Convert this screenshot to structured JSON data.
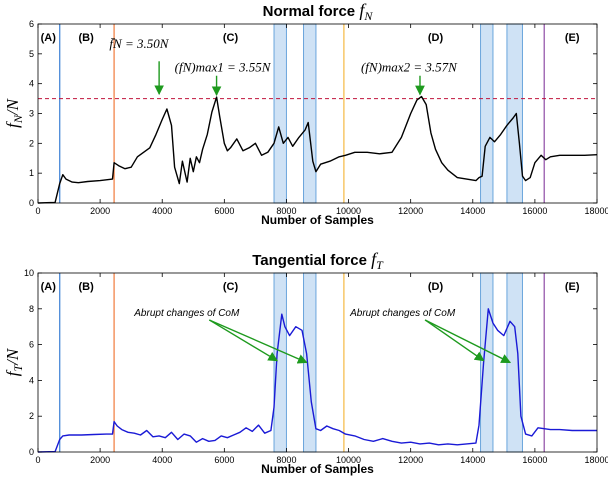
{
  "chart_data": [
    {
      "type": "line",
      "title_text": "Normal force",
      "title_symbol": "f",
      "title_symbol_sub": "N",
      "xlabel": "Number of Samples",
      "ylabel": "f",
      "ylabel_sub": "N",
      "ylabel_suffix": "/N",
      "xlim": [
        0,
        18000
      ],
      "ylim": [
        0,
        6
      ],
      "xticks": [
        0,
        2000,
        4000,
        6000,
        8000,
        10000,
        12000,
        14000,
        16000,
        18000
      ],
      "yticks": [
        0,
        1,
        2,
        3,
        4,
        5,
        6
      ],
      "grid": false,
      "line_color": "#000000",
      "reference_line": {
        "y": 3.5,
        "style": "dashed",
        "color": "#c0143c"
      },
      "phase_lines": [
        {
          "x": 700,
          "color": "#3a7fd5"
        },
        {
          "x": 2450,
          "color": "#f07a3a"
        },
        {
          "x": 9850,
          "color": "#f5b942"
        },
        {
          "x": 16300,
          "color": "#8e4ba5"
        }
      ],
      "shaded_regions": [
        [
          7600,
          8000
        ],
        [
          8550,
          8950
        ],
        [
          14250,
          14650
        ],
        [
          15100,
          15600
        ]
      ],
      "shade_color": "#cfe2f5",
      "shade_edge": "#6aa5dc",
      "phase_labels": [
        {
          "text": "(A)",
          "x": 330
        },
        {
          "text": "(B)",
          "x": 1550
        },
        {
          "text": "(C)",
          "x": 6200
        },
        {
          "text": "(D)",
          "x": 12800
        },
        {
          "text": "(E)",
          "x": 17200
        }
      ],
      "annotations": [
        {
          "text": "f̄N = 3.50N",
          "x": 2300,
          "y": 5.2
        },
        {
          "text": "(fN)max1 = 3.55N",
          "x": 4400,
          "y": 4.4,
          "arrow_to": [
            5750,
            3.55
          ]
        },
        {
          "text": "(fN)max2 = 3.57N",
          "x": 10400,
          "y": 4.4,
          "arrow_to": [
            12300,
            3.57
          ]
        }
      ],
      "extra_arrow": {
        "from": [
          3900,
          4.75
        ],
        "to": [
          3900,
          3.55
        ]
      },
      "series": [
        {
          "x": [
            0,
            550,
            700,
            800,
            900,
            1000,
            1100,
            1300,
            1600,
            2000,
            2400,
            2450,
            2600,
            2800,
            3000,
            3200,
            3400,
            3600,
            3800,
            4000,
            4150,
            4300,
            4400,
            4550,
            4650,
            4800,
            4900,
            5000,
            5100,
            5200,
            5300,
            5450,
            5600,
            5750,
            5850,
            6000,
            6100,
            6200,
            6400,
            6600,
            6800,
            7000,
            7200,
            7400,
            7600,
            7750,
            7900,
            8050,
            8200,
            8400,
            8600,
            8700,
            8850,
            8950,
            9100,
            9400,
            9700,
            9900,
            10200,
            10600,
            11000,
            11400,
            11700,
            12000,
            12200,
            12350,
            12500,
            12650,
            12800,
            13000,
            13200,
            13500,
            13800,
            14100,
            14200,
            14300,
            14400,
            14550,
            14700,
            14900,
            15100,
            15300,
            15400,
            15500,
            15600,
            15700,
            15850,
            16000,
            16200,
            16350,
            16500,
            16800,
            17200,
            17600,
            18000
          ],
          "y": [
            0,
            0.02,
            0.65,
            0.95,
            0.8,
            0.75,
            0.7,
            0.68,
            0.72,
            0.75,
            0.8,
            1.35,
            1.25,
            1.15,
            1.2,
            1.55,
            1.7,
            1.85,
            2.3,
            2.8,
            3.15,
            2.6,
            1.2,
            0.65,
            1.4,
            0.7,
            1.5,
            1.05,
            1.55,
            1.35,
            1.8,
            2.3,
            3.05,
            3.55,
            2.9,
            2.0,
            1.75,
            1.85,
            2.15,
            1.75,
            1.85,
            2.0,
            1.6,
            1.7,
            2.0,
            2.55,
            2.0,
            2.2,
            1.9,
            2.2,
            2.45,
            2.7,
            1.4,
            1.05,
            1.3,
            1.4,
            1.55,
            1.6,
            1.7,
            1.7,
            1.65,
            1.7,
            2.2,
            3.0,
            3.45,
            3.57,
            3.3,
            2.35,
            1.8,
            1.35,
            1.1,
            0.85,
            0.8,
            0.75,
            0.85,
            0.9,
            1.9,
            2.2,
            2.05,
            2.3,
            2.6,
            2.85,
            3.0,
            2.0,
            0.9,
            0.75,
            0.85,
            1.35,
            1.6,
            1.45,
            1.55,
            1.6,
            1.6,
            1.6,
            1.62
          ]
        }
      ]
    },
    {
      "type": "line",
      "title_text": "Tangential force",
      "title_symbol": "f",
      "title_symbol_sub": "T",
      "xlabel": "Number of Samples",
      "ylabel": "f",
      "ylabel_sub": "T",
      "ylabel_suffix": "/N",
      "xlim": [
        0,
        18000
      ],
      "ylim": [
        0,
        10
      ],
      "xticks": [
        0,
        2000,
        4000,
        6000,
        8000,
        10000,
        12000,
        14000,
        16000,
        18000
      ],
      "yticks": [
        0,
        2,
        4,
        6,
        8,
        10
      ],
      "grid": false,
      "line_color": "#1a1ad6",
      "phase_lines": [
        {
          "x": 700,
          "color": "#3a7fd5"
        },
        {
          "x": 2450,
          "color": "#f07a3a"
        },
        {
          "x": 9850,
          "color": "#f5b942"
        },
        {
          "x": 16300,
          "color": "#8e4ba5"
        }
      ],
      "shaded_regions": [
        [
          7600,
          8000
        ],
        [
          8550,
          8950
        ],
        [
          14250,
          14650
        ],
        [
          15100,
          15600
        ]
      ],
      "shade_color": "#cfe2f5",
      "shade_edge": "#6aa5dc",
      "phase_labels": [
        {
          "text": "(A)",
          "x": 330
        },
        {
          "text": "(B)",
          "x": 1550
        },
        {
          "text": "(C)",
          "x": 6200
        },
        {
          "text": "(D)",
          "x": 12800
        },
        {
          "text": "(E)",
          "x": 17200
        }
      ],
      "annotations": [
        {
          "text": "Abrupt changes of CoM",
          "x": 3100,
          "y": 7.6,
          "arrows_to": [
            [
              7800,
              5.1
            ],
            [
              8750,
              5.0
            ]
          ]
        },
        {
          "text": "Abrupt changes of CoM",
          "x": 10050,
          "y": 7.6,
          "arrows_to": [
            [
              14450,
              5.1
            ],
            [
              15300,
              5.0
            ]
          ]
        }
      ],
      "series": [
        {
          "x": [
            0,
            550,
            700,
            800,
            1000,
            1400,
            1800,
            2200,
            2400,
            2450,
            2550,
            2700,
            2900,
            3100,
            3300,
            3500,
            3700,
            3900,
            4100,
            4300,
            4500,
            4700,
            4900,
            5100,
            5300,
            5500,
            5700,
            5900,
            6100,
            6300,
            6500,
            6700,
            6900,
            7100,
            7300,
            7500,
            7600,
            7700,
            7850,
            7950,
            8100,
            8300,
            8500,
            8650,
            8800,
            8950,
            9100,
            9300,
            9500,
            9700,
            9900,
            10200,
            10500,
            10800,
            11100,
            11400,
            11700,
            12000,
            12300,
            12600,
            12900,
            13200,
            13500,
            13800,
            14100,
            14200,
            14350,
            14500,
            14650,
            14800,
            15000,
            15200,
            15350,
            15450,
            15550,
            15700,
            15900,
            16100,
            16300,
            16500,
            16800,
            17200,
            17600,
            18000
          ],
          "y": [
            0,
            0.02,
            0.7,
            0.9,
            0.95,
            0.95,
            0.98,
            1.0,
            1.0,
            1.7,
            1.45,
            1.25,
            1.1,
            1.05,
            0.95,
            1.2,
            0.85,
            0.9,
            0.8,
            1.1,
            0.7,
            1.0,
            0.9,
            0.55,
            0.75,
            0.6,
            0.65,
            0.9,
            0.8,
            0.95,
            1.1,
            1.35,
            1.15,
            1.5,
            1.05,
            1.2,
            2.5,
            5.5,
            7.7,
            7.0,
            6.5,
            7.0,
            6.8,
            5.5,
            2.8,
            1.3,
            1.2,
            1.45,
            1.3,
            1.2,
            1.0,
            0.9,
            0.7,
            0.6,
            0.75,
            0.6,
            0.5,
            0.55,
            0.45,
            0.5,
            0.4,
            0.45,
            0.4,
            0.45,
            0.5,
            1.5,
            5.0,
            8.0,
            7.2,
            6.8,
            6.5,
            7.3,
            7.0,
            5.5,
            2.0,
            1.0,
            0.9,
            1.35,
            1.3,
            1.25,
            1.25,
            1.2,
            1.2,
            1.2
          ]
        }
      ]
    }
  ]
}
